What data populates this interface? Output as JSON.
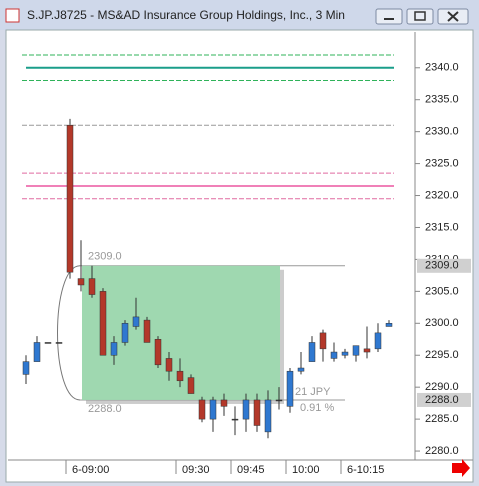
{
  "chart_data": {
    "type": "candlestick",
    "title": "S.JP.J8725 - MS&AD Insurance Group Holdings, Inc., 3 Min",
    "categories": [
      null,
      null,
      null,
      null,
      "6-09:00",
      null,
      null,
      null,
      null,
      null,
      null,
      null,
      null,
      null,
      "09:30",
      null,
      null,
      null,
      null,
      "09:45",
      null,
      null,
      null,
      null,
      "10:00",
      null,
      null,
      null,
      null,
      "6-10:15",
      null,
      null,
      null,
      null
    ],
    "open": [
      2292,
      2294,
      2297,
      2297,
      2331,
      2307,
      2307,
      2305,
      2295,
      2297,
      2299.5,
      2300.5,
      2297.5,
      2294.5,
      2292.5,
      2291.5,
      2288,
      2285,
      2288,
      2285,
      2285,
      2288,
      2283,
      2288,
      2287,
      2292.5,
      2294,
      2298.5,
      2294.5,
      2295,
      2295,
      2296,
      2296,
      2299.5
    ],
    "high": [
      2295,
      2298,
      2297,
      2297,
      2332,
      2313,
      2309,
      2305.5,
      2298,
      2300.5,
      2304,
      2301,
      2298,
      2295.5,
      2294.5,
      2292,
      2288.5,
      2288.5,
      2289,
      2287,
      2289,
      2289,
      2289.5,
      2290,
      2293,
      2295.5,
      2298,
      2299,
      2297,
      2296,
      2296.5,
      2299.5,
      2300,
      2300.5
    ],
    "low": [
      2290.5,
      2294,
      2297,
      2297,
      2307,
      2305,
      2304,
      2295,
      2293.5,
      2296.5,
      2299,
      2297,
      2293,
      2291,
      2290,
      2289,
      2284.5,
      2283,
      2285.5,
      2282.5,
      2283,
      2283,
      2282,
      2286.5,
      2286,
      2292,
      2294,
      2294,
      2294,
      2294.5,
      2294,
      2294.5,
      2295.5,
      2299.5
    ],
    "close": [
      2294,
      2297,
      2297,
      2297,
      2308,
      2306,
      2304.5,
      2295,
      2297,
      2300,
      2301,
      2297,
      2293.5,
      2292.5,
      2291,
      2289,
      2285,
      2288,
      2287,
      2285,
      2288,
      2284,
      2288,
      2288,
      2292.5,
      2293,
      2297,
      2296,
      2295.5,
      2295.5,
      2296.5,
      2295.5,
      2298.5,
      2300
    ],
    "up_color": "#2f78d0",
    "down_color": "#b3382a",
    "ylim": [
      2278.6,
      2345.6
    ],
    "yticks": [
      {
        "value": 2280,
        "label": "2280.0"
      },
      {
        "value": 2285,
        "label": "2285.0"
      },
      {
        "value": 2290,
        "label": "2290.0"
      },
      {
        "value": 2295,
        "label": "2295.0"
      },
      {
        "value": 2300,
        "label": "2300.0"
      },
      {
        "value": 2305,
        "label": "2305.0"
      },
      {
        "value": 2310,
        "label": "2310.0"
      },
      {
        "value": 2315,
        "label": "2315.0"
      },
      {
        "value": 2320,
        "label": "2320.0"
      },
      {
        "value": 2325,
        "label": "2325.0"
      },
      {
        "value": 2330,
        "label": "2330.0"
      },
      {
        "value": 2335,
        "label": "2335.0"
      },
      {
        "value": 2340,
        "label": "2340.0"
      }
    ],
    "levels": [
      {
        "value": 2342,
        "color": "#2fb35a",
        "dash": true
      },
      {
        "value": 2340,
        "color": "#1a9e8a",
        "dash": false
      },
      {
        "value": 2338,
        "color": "#2fb35a",
        "dash": true
      },
      {
        "value": 2331,
        "color": "#999999",
        "dash": true
      },
      {
        "value": 2323.5,
        "color": "#e06aa0",
        "dash": true
      },
      {
        "value": 2321.5,
        "color": "#f080b8",
        "dash": false
      },
      {
        "value": 2319.5,
        "color": "#e06aa0",
        "dash": true
      }
    ],
    "measure": {
      "high": 2309,
      "low": 2288,
      "high_label": "2309.0",
      "low_label": "2288.0",
      "change": "21 JPY",
      "percent": "0.91 %"
    }
  }
}
